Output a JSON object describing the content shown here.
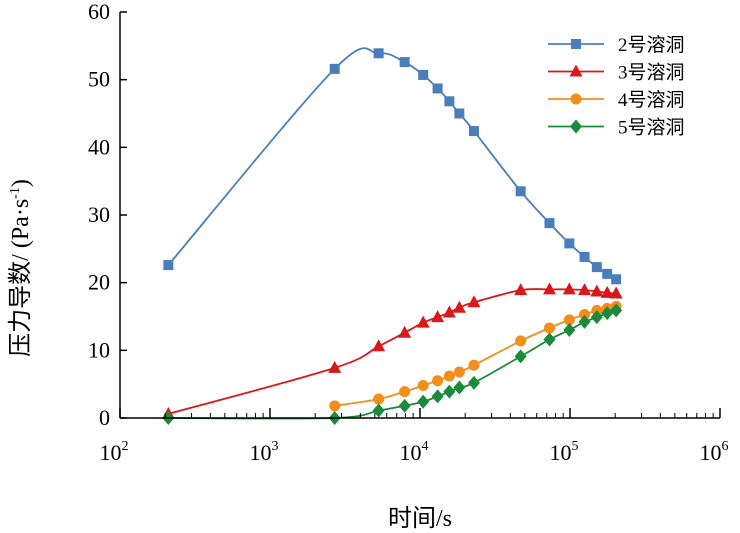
{
  "chart_data": {
    "type": "line",
    "x_scale": "log",
    "xlim": [
      100,
      1000000
    ],
    "ylim": [
      0,
      60
    ],
    "x_ticks": [
      {
        "value": 100,
        "base": "10",
        "exp": "2"
      },
      {
        "value": 1000,
        "base": "10",
        "exp": "3"
      },
      {
        "value": 10000,
        "base": "10",
        "exp": "4"
      },
      {
        "value": 100000,
        "base": "10",
        "exp": "5"
      },
      {
        "value": 1000000,
        "base": "10",
        "exp": "6"
      }
    ],
    "y_ticks": [
      "0",
      "10",
      "20",
      "30",
      "40",
      "50",
      "60"
    ],
    "xlabel": "时间/s",
    "ylabel_main": "压力导数/ (Pa·s",
    "ylabel_sup": "-1",
    "ylabel_end": ")",
    "legend_position": "top-right",
    "series": [
      {
        "name": "2号溶洞",
        "color": "#4a7ebb",
        "marker": "square",
        "points": [
          [
            210,
            22.6
          ],
          [
            2700,
            51.6
          ],
          [
            5300,
            53.9
          ],
          [
            7900,
            52.6
          ],
          [
            10500,
            50.7
          ],
          [
            13100,
            48.7
          ],
          [
            15700,
            46.8
          ],
          [
            18300,
            45.0
          ],
          [
            22900,
            42.4
          ],
          [
            46900,
            33.5
          ],
          [
            73000,
            28.8
          ],
          [
            99000,
            25.8
          ],
          [
            125000,
            23.8
          ],
          [
            151000,
            22.3
          ],
          [
            177000,
            21.3
          ],
          [
            203000,
            20.5
          ]
        ]
      },
      {
        "name": "3号溶洞",
        "color": "#d7191c",
        "marker": "triangle",
        "points": [
          [
            210,
            0.6
          ],
          [
            2700,
            7.4
          ],
          [
            5300,
            10.6
          ],
          [
            7900,
            12.6
          ],
          [
            10500,
            14.1
          ],
          [
            13100,
            14.9
          ],
          [
            15700,
            15.6
          ],
          [
            18300,
            16.3
          ],
          [
            22900,
            17.1
          ],
          [
            46900,
            18.9
          ],
          [
            73000,
            19.0
          ],
          [
            99000,
            19.0
          ],
          [
            125000,
            18.9
          ],
          [
            151000,
            18.7
          ],
          [
            177000,
            18.5
          ],
          [
            203000,
            18.4
          ]
        ]
      },
      {
        "name": "4号溶洞",
        "color": "#f28e1b",
        "marker": "circle",
        "points": [
          [
            2700,
            1.8
          ],
          [
            5300,
            2.8
          ],
          [
            7900,
            3.9
          ],
          [
            10500,
            4.8
          ],
          [
            13100,
            5.5
          ],
          [
            15700,
            6.2
          ],
          [
            18300,
            6.8
          ],
          [
            22900,
            7.8
          ],
          [
            46900,
            11.4
          ],
          [
            73000,
            13.3
          ],
          [
            99000,
            14.5
          ],
          [
            125000,
            15.3
          ],
          [
            151000,
            15.9
          ],
          [
            177000,
            16.2
          ],
          [
            203000,
            16.5
          ]
        ]
      },
      {
        "name": "5号溶洞",
        "color": "#1b8a3a",
        "marker": "diamond",
        "points": [
          [
            210,
            0.0
          ],
          [
            2700,
            0.0
          ],
          [
            5300,
            1.1
          ],
          [
            7900,
            1.8
          ],
          [
            10500,
            2.4
          ],
          [
            13100,
            3.2
          ],
          [
            15700,
            3.9
          ],
          [
            18300,
            4.5
          ],
          [
            22900,
            5.2
          ],
          [
            46900,
            9.1
          ],
          [
            73000,
            11.6
          ],
          [
            99000,
            13.0
          ],
          [
            125000,
            14.2
          ],
          [
            151000,
            14.9
          ],
          [
            177000,
            15.5
          ],
          [
            203000,
            15.9
          ]
        ]
      }
    ]
  }
}
